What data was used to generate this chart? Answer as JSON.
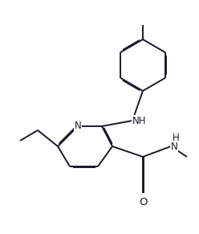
{
  "bg_color": "#ffffff",
  "line_color": "#1a1a2e",
  "lw": 1.4,
  "dbo": 0.012,
  "fs": 8.5,
  "xlim": [
    0,
    2.48
  ],
  "ylim": [
    0,
    2.91
  ]
}
